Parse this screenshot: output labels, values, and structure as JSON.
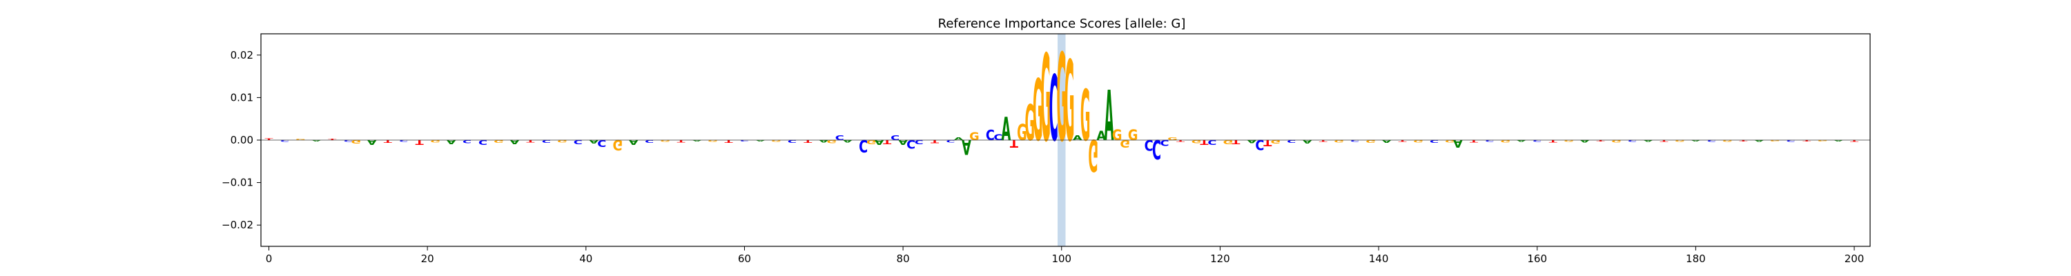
{
  "chart_data": {
    "type": "sequence-logo",
    "title": "Reference Importance Scores [allele: G]",
    "xlabel": "",
    "ylabel": "",
    "xlim": [
      -1,
      202
    ],
    "ylim": [
      -0.025,
      0.025
    ],
    "xticks": [
      0,
      20,
      40,
      60,
      80,
      100,
      120,
      140,
      160,
      180,
      200
    ],
    "yticks": [
      -0.02,
      -0.01,
      0.0,
      0.01,
      0.02
    ],
    "ytick_labels": [
      "−0.02",
      "−0.01",
      "0.00",
      "0.01",
      "0.02"
    ],
    "highlight_span": [
      100,
      101
    ],
    "highlight_color": "#c6d9ec",
    "grid": false,
    "base_colors": {
      "A": "#008000",
      "C": "#0000ff",
      "G": "#ffa500",
      "T": "#ff0000"
    },
    "background": [
      {
        "x": 0,
        "base": "T",
        "value": 0.0004
      },
      {
        "x": 2,
        "base": "C",
        "value": -0.0004
      },
      {
        "x": 4,
        "base": "G",
        "value": 0.0003
      },
      {
        "x": 6,
        "base": "A",
        "value": -0.0003
      },
      {
        "x": 8,
        "base": "T",
        "value": 0.0003
      },
      {
        "x": 10,
        "base": "C",
        "value": -0.0004
      },
      {
        "x": 11,
        "base": "G",
        "value": -0.0008
      },
      {
        "x": 13,
        "base": "A",
        "value": -0.0012
      },
      {
        "x": 15,
        "base": "T",
        "value": -0.0006
      },
      {
        "x": 17,
        "base": "C",
        "value": -0.0004
      },
      {
        "x": 19,
        "base": "T",
        "value": -0.0012
      },
      {
        "x": 21,
        "base": "G",
        "value": -0.0005
      },
      {
        "x": 23,
        "base": "A",
        "value": -0.0009
      },
      {
        "x": 25,
        "base": "C",
        "value": -0.0007
      },
      {
        "x": 27,
        "base": "C",
        "value": -0.0011
      },
      {
        "x": 29,
        "base": "G",
        "value": -0.0006
      },
      {
        "x": 31,
        "base": "A",
        "value": -0.0009
      },
      {
        "x": 33,
        "base": "T",
        "value": -0.0005
      },
      {
        "x": 35,
        "base": "C",
        "value": -0.0006
      },
      {
        "x": 37,
        "base": "G",
        "value": -0.0005
      },
      {
        "x": 39,
        "base": "C",
        "value": -0.0009
      },
      {
        "x": 41,
        "base": "A",
        "value": -0.0008
      },
      {
        "x": 42,
        "base": "C",
        "value": -0.0016
      },
      {
        "x": 44,
        "base": "G",
        "value": -0.0024
      },
      {
        "x": 46,
        "base": "A",
        "value": -0.0011
      },
      {
        "x": 48,
        "base": "C",
        "value": -0.0006
      },
      {
        "x": 50,
        "base": "G",
        "value": -0.0004
      },
      {
        "x": 52,
        "base": "T",
        "value": -0.0005
      },
      {
        "x": 54,
        "base": "A",
        "value": -0.0003
      },
      {
        "x": 56,
        "base": "G",
        "value": -0.0004
      },
      {
        "x": 58,
        "base": "T",
        "value": -0.0006
      },
      {
        "x": 60,
        "base": "C",
        "value": -0.0003
      },
      {
        "x": 62,
        "base": "A",
        "value": -0.0003
      },
      {
        "x": 64,
        "base": "G",
        "value": -0.0004
      },
      {
        "x": 66,
        "base": "C",
        "value": -0.0006
      },
      {
        "x": 68,
        "base": "T",
        "value": -0.0006
      },
      {
        "x": 70,
        "base": "A",
        "value": -0.0005
      },
      {
        "x": 71,
        "base": "G",
        "value": -0.0007
      },
      {
        "x": 73,
        "base": "A",
        "value": -0.0005
      },
      {
        "x": 76,
        "base": "G",
        "value": -0.0009
      },
      {
        "x": 78,
        "base": "T",
        "value": -0.0009
      },
      {
        "x": 80,
        "base": "A",
        "value": -0.0011
      },
      {
        "x": 82,
        "base": "C",
        "value": -0.0009
      },
      {
        "x": 84,
        "base": "T",
        "value": -0.0007
      },
      {
        "x": 86,
        "base": "C",
        "value": -0.0005
      },
      {
        "x": 115,
        "base": "T",
        "value": -0.0004
      },
      {
        "x": 117,
        "base": "G",
        "value": -0.0007
      },
      {
        "x": 118,
        "base": "T",
        "value": -0.0011
      },
      {
        "x": 121,
        "base": "G",
        "value": -0.0009
      },
      {
        "x": 122,
        "base": "T",
        "value": -0.0009
      },
      {
        "x": 124,
        "base": "A",
        "value": -0.0007
      },
      {
        "x": 127,
        "base": "G",
        "value": -0.0008
      },
      {
        "x": 129,
        "base": "C",
        "value": -0.0006
      },
      {
        "x": 131,
        "base": "A",
        "value": -0.0008
      },
      {
        "x": 133,
        "base": "T",
        "value": -0.0004
      },
      {
        "x": 135,
        "base": "G",
        "value": -0.0005
      },
      {
        "x": 137,
        "base": "C",
        "value": -0.0004
      },
      {
        "x": 139,
        "base": "G",
        "value": -0.0006
      },
      {
        "x": 141,
        "base": "A",
        "value": -0.0006
      },
      {
        "x": 143,
        "base": "T",
        "value": -0.0004
      },
      {
        "x": 145,
        "base": "G",
        "value": -0.0005
      },
      {
        "x": 147,
        "base": "C",
        "value": -0.0006
      },
      {
        "x": 149,
        "base": "G",
        "value": -0.0005
      },
      {
        "x": 150,
        "base": "A",
        "value": -0.0018
      },
      {
        "x": 152,
        "base": "T",
        "value": -0.0005
      },
      {
        "x": 154,
        "base": "C",
        "value": -0.0004
      },
      {
        "x": 156,
        "base": "G",
        "value": -0.0005
      },
      {
        "x": 158,
        "base": "A",
        "value": -0.0004
      },
      {
        "x": 160,
        "base": "C",
        "value": -0.0004
      },
      {
        "x": 162,
        "base": "T",
        "value": -0.0005
      },
      {
        "x": 164,
        "base": "G",
        "value": -0.0004
      },
      {
        "x": 166,
        "base": "A",
        "value": -0.0005
      },
      {
        "x": 168,
        "base": "T",
        "value": -0.0003
      },
      {
        "x": 170,
        "base": "G",
        "value": -0.0005
      },
      {
        "x": 172,
        "base": "C",
        "value": -0.0004
      },
      {
        "x": 174,
        "base": "A",
        "value": -0.0004
      },
      {
        "x": 176,
        "base": "T",
        "value": -0.0004
      },
      {
        "x": 178,
        "base": "G",
        "value": -0.0004
      },
      {
        "x": 180,
        "base": "A",
        "value": -0.0003
      },
      {
        "x": 182,
        "base": "C",
        "value": -0.0004
      },
      {
        "x": 184,
        "base": "G",
        "value": -0.0004
      },
      {
        "x": 186,
        "base": "T",
        "value": -0.0003
      },
      {
        "x": 188,
        "base": "A",
        "value": -0.0004
      },
      {
        "x": 190,
        "base": "G",
        "value": -0.0003
      },
      {
        "x": 192,
        "base": "C",
        "value": -0.0004
      },
      {
        "x": 194,
        "base": "T",
        "value": -0.0003
      },
      {
        "x": 196,
        "base": "G",
        "value": -0.0003
      },
      {
        "x": 198,
        "base": "A",
        "value": -0.0003
      },
      {
        "x": 200,
        "base": "T",
        "value": -0.0004
      }
    ],
    "motif": [
      {
        "x": 72,
        "base": "C",
        "value": 0.0012
      },
      {
        "x": 75,
        "base": "C",
        "value": -0.003
      },
      {
        "x": 77,
        "base": "A",
        "value": -0.0012
      },
      {
        "x": 79,
        "base": "C",
        "value": 0.0011
      },
      {
        "x": 81,
        "base": "C",
        "value": -0.002
      },
      {
        "x": 87,
        "base": "A",
        "value": 0.0006
      },
      {
        "x": 88,
        "base": "A",
        "value": -0.0035
      },
      {
        "x": 89,
        "base": "G",
        "value": 0.0019
      },
      {
        "x": 91,
        "base": "C",
        "value": 0.0024
      },
      {
        "x": 92,
        "base": "C",
        "value": 0.0014
      },
      {
        "x": 93,
        "base": "A",
        "value": 0.0055
      },
      {
        "x": 94,
        "base": "T",
        "value": -0.0018
      },
      {
        "x": 95,
        "base": "G",
        "value": 0.0038
      },
      {
        "x": 96,
        "base": "G",
        "value": 0.0085
      },
      {
        "x": 97,
        "base": "G",
        "value": 0.0145
      },
      {
        "x": 98,
        "base": "G",
        "value": 0.0205
      },
      {
        "x": 99,
        "base": "C",
        "value": 0.0155
      },
      {
        "x": 100,
        "base": "G",
        "value": 0.0207
      },
      {
        "x": 101,
        "base": "G",
        "value": 0.019
      },
      {
        "x": 102,
        "base": "A",
        "value": 0.0012
      },
      {
        "x": 103,
        "base": "G",
        "value": 0.012
      },
      {
        "x": 104,
        "base": "G",
        "value": -0.0075
      },
      {
        "x": 105,
        "base": "A",
        "value": 0.0022
      },
      {
        "x": 106,
        "base": "A",
        "value": 0.0118
      },
      {
        "x": 107,
        "base": "G",
        "value": 0.0025
      },
      {
        "x": 108,
        "base": "G",
        "value": -0.0018
      },
      {
        "x": 109,
        "base": "G",
        "value": 0.0025
      },
      {
        "x": 111,
        "base": "C",
        "value": -0.0025
      },
      {
        "x": 112,
        "base": "C",
        "value": -0.0045
      },
      {
        "x": 113,
        "base": "C",
        "value": -0.0014
      },
      {
        "x": 114,
        "base": "G",
        "value": 0.0006
      },
      {
        "x": 119,
        "base": "C",
        "value": -0.0012
      },
      {
        "x": 125,
        "base": "C",
        "value": -0.0023
      },
      {
        "x": 126,
        "base": "T",
        "value": -0.0015
      }
    ]
  }
}
